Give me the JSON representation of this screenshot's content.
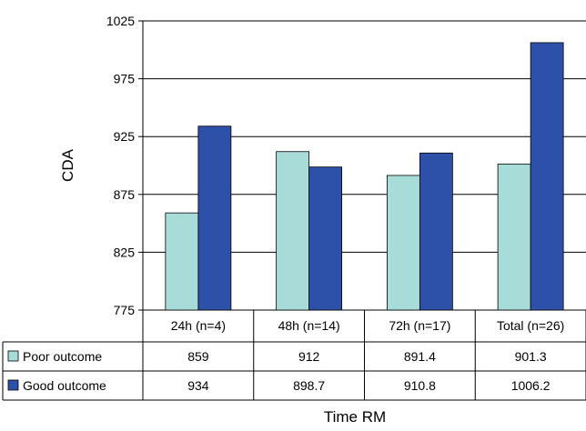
{
  "chart_data": {
    "type": "bar",
    "categories": [
      "24h (n=4)",
      "48h (n=14)",
      "72h (n=17)",
      "Total (n=26)"
    ],
    "series": [
      {
        "name": "Poor outcome",
        "values": [
          859,
          912,
          891.4,
          901.3
        ],
        "color": "#a8dcd8"
      },
      {
        "name": "Good outcome",
        "values": [
          934,
          898.7,
          910.8,
          1006.2
        ],
        "color": "#2d50a8"
      }
    ],
    "ylabel": "CDA",
    "xlabel": "Time RM",
    "ylim": [
      775,
      1025
    ],
    "yticks": [
      775,
      825,
      875,
      925,
      975,
      1025
    ],
    "table_values": [
      [
        "859",
        "912",
        "891.4",
        "901.3"
      ],
      [
        "934",
        "898.7",
        "910.8",
        "1006.2"
      ]
    ],
    "grid": true,
    "legend": "data-table"
  }
}
